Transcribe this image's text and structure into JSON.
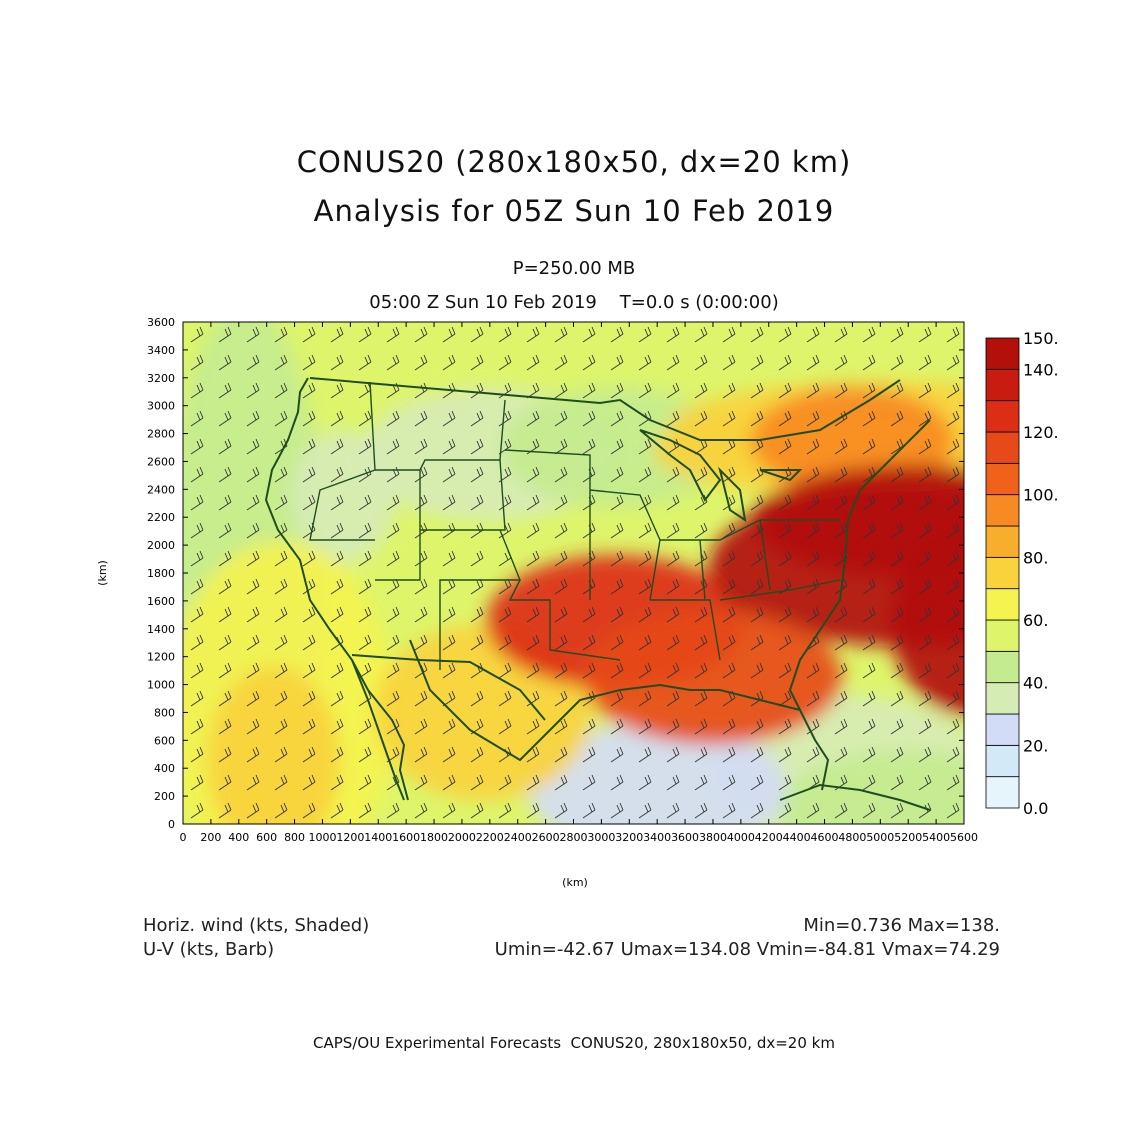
{
  "title_line1": "CONUS20 (280x180x50, dx=20 km)",
  "title_line2": "Analysis for 05Z Sun 10 Feb 2019",
  "level_label": "P=250.00 MB",
  "time_label": "05:00 Z Sun 10 Feb 2019    T=0.0 s (0:00:00)",
  "info": {
    "left_line1": "Horiz. wind (kts, Shaded)",
    "left_line2": "U-V (kts, Barb)",
    "right_line1": "Min=0.736 Max=138.",
    "right_line2": "Umin=-42.67 Umax=134.08 Vmin=-84.81 Vmax=74.29"
  },
  "footer": "CAPS/OU Experimental Forecasts  CONUS20, 280x180x50, dx=20 km",
  "axes": {
    "x_label": "(km)",
    "y_label": "(km)",
    "x_range": [
      0,
      5600
    ],
    "y_range": [
      0,
      3600
    ],
    "x_ticks": [
      0,
      200,
      400,
      600,
      800,
      1000,
      1200,
      1400,
      1600,
      1800,
      2000,
      2200,
      2400,
      2600,
      2800,
      3000,
      3200,
      3400,
      3600,
      3800,
      4000,
      4200,
      4400,
      4600,
      4800,
      5000,
      5200,
      5400,
      5600
    ],
    "y_ticks": [
      0,
      200,
      400,
      600,
      800,
      1000,
      1200,
      1400,
      1600,
      1800,
      2000,
      2200,
      2400,
      2600,
      2800,
      3000,
      3200,
      3400,
      3600
    ]
  },
  "colorbar": {
    "levels": [
      0,
      10,
      20,
      30,
      40,
      50,
      60,
      70,
      80,
      90,
      100,
      110,
      120,
      130,
      140,
      150
    ],
    "colors": [
      "#e6f5fb",
      "#d3e9f7",
      "#d2dcf6",
      "#d6ecb6",
      "#c4eb8f",
      "#def56b",
      "#f4f34f",
      "#f8d33c",
      "#f8ae2c",
      "#f78a23",
      "#f0621c",
      "#e64a18",
      "#dc2e14",
      "#c81c10",
      "#b21008"
    ],
    "labels": [
      {
        "value": 0,
        "text": "0.0"
      },
      {
        "value": 20,
        "text": "20."
      },
      {
        "value": 40,
        "text": "40."
      },
      {
        "value": 60,
        "text": "60."
      },
      {
        "value": 80,
        "text": "80."
      },
      {
        "value": 100,
        "text": "100."
      },
      {
        "value": 120,
        "text": "120."
      },
      {
        "value": 140,
        "text": "140."
      },
      {
        "value": 150,
        "text": "150."
      }
    ]
  },
  "colors": {
    "map_lines": "#1f4d1f",
    "barb": "#333333"
  }
}
